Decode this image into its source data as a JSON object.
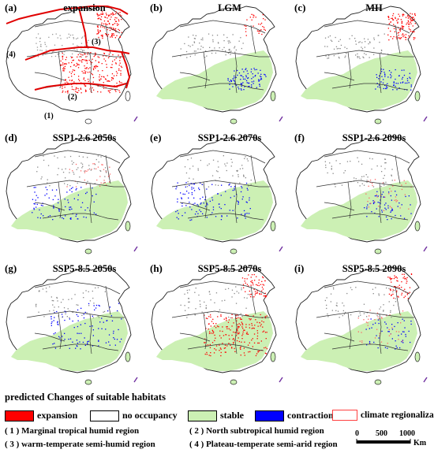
{
  "panels": [
    {
      "letter": "(a)",
      "title": "expansion",
      "map": "regionalization"
    },
    {
      "letter": "(b)",
      "title": "LGM",
      "map": "lgm"
    },
    {
      "letter": "(c)",
      "title": "MH",
      "map": "mh"
    },
    {
      "letter": "(d)",
      "title": "SSP1-2.6 2050s",
      "map": "ssp126_2050"
    },
    {
      "letter": "(e)",
      "title": "SSP1-2.6 2070s",
      "map": "ssp126_2070"
    },
    {
      "letter": "(f)",
      "title": "SSP1-2.6 2090s",
      "map": "ssp126_2090"
    },
    {
      "letter": "(g)",
      "title": "SSP5-8.5 2050s",
      "map": "ssp585_2050"
    },
    {
      "letter": "(h)",
      "title": "SSP5-8.5 2070s",
      "map": "ssp585_2070"
    },
    {
      "letter": "(i)",
      "title": "SSP5-8.5 2090s",
      "map": "ssp585_2090"
    }
  ],
  "region_labels": [
    "(1)",
    "(2)",
    "(3)",
    "(4)"
  ],
  "legend": {
    "title": "predicted Changes of suitable habitats",
    "items": [
      {
        "label": "expansion",
        "color": "#ff0000",
        "style": "fill"
      },
      {
        "label": "no occupancy",
        "color": "#ffffff",
        "style": "fill"
      },
      {
        "label": "stable",
        "color": "#ccf0b4",
        "style": "fill"
      },
      {
        "label": "contraction",
        "color": "#0000ff",
        "style": "fill"
      },
      {
        "label": "climate regionalization",
        "color": "#ff4040",
        "style": "outline"
      }
    ]
  },
  "zones": [
    "( 1 )  Marginal tropical humid region",
    "( 2 )  North subtropical humid region",
    "( 3 )  warm-temperate semi-humid region",
    "( 4 )  Plateau-temperate semi-arid region"
  ],
  "scale": {
    "ticks": [
      "0",
      "500",
      "1000"
    ],
    "unit": "Km"
  }
}
